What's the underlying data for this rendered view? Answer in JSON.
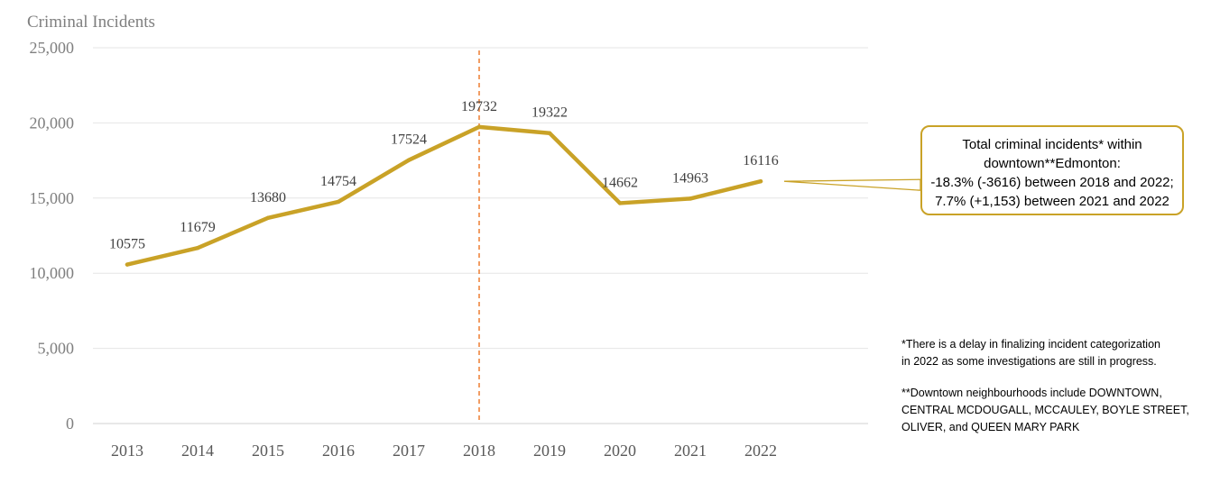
{
  "chart_data": {
    "type": "line",
    "categories": [
      "2013",
      "2014",
      "2015",
      "2016",
      "2017",
      "2018",
      "2019",
      "2020",
      "2021",
      "2022"
    ],
    "series": [
      {
        "values": [
          10575,
          11679,
          13680,
          14754,
          17524,
          19732,
          19322,
          14662,
          14963,
          16116
        ]
      }
    ],
    "data_labels": [
      "10575",
      "11679",
      "13680",
      "14754",
      "17524",
      "19732",
      "19322",
      "14662",
      "14963",
      "16116"
    ],
    "ylabel": "Criminal Incidents",
    "xlabel": "",
    "ylim": [
      0,
      25000
    ],
    "y_ticks": [
      0,
      5000,
      10000,
      15000,
      20000,
      25000
    ],
    "y_tick_labels": [
      "0",
      "5,000",
      "10,000",
      "15,000",
      "20,000",
      "25,000"
    ],
    "grid": true,
    "reference_line": {
      "category": "2018",
      "style": "dashed",
      "color": "#ed7d31"
    },
    "line_color": "#c9a227"
  },
  "callout": {
    "lines": [
      "Total criminal incidents* within",
      "downtown**Edmonton:",
      "-18.3% (-3616) between 2018 and 2022;",
      "7.7% (+1,153) between 2021 and 2022"
    ],
    "anchor_category": "2022"
  },
  "footnotes": [
    "*There is a delay in finalizing incident categorization\nin 2022 as some investigations are still in progress.",
    "**Downtown neighbourhoods include DOWNTOWN,\nCENTRAL MCDOUGALL, MCCAULEY, BOYLE STREET,\nOLIVER, and QUEEN MARY PARK"
  ]
}
